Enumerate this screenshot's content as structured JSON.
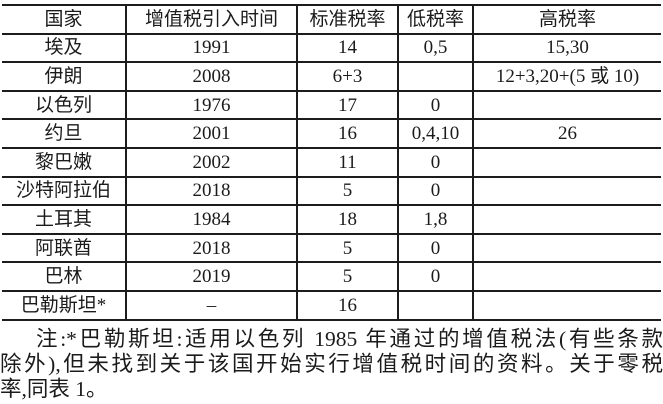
{
  "table": {
    "headers": [
      "国家",
      "增值税引入时间",
      "标准税率",
      "低税率",
      "高税率"
    ],
    "rows": [
      {
        "country": "埃及",
        "intro_year": "1991",
        "standard_rate": "14",
        "low_rate": "0,5",
        "high_rate": "15,30"
      },
      {
        "country": "伊朗",
        "intro_year": "2008",
        "standard_rate": "6+3",
        "low_rate": "",
        "high_rate": "12+3,20+(5 或 10)"
      },
      {
        "country": "以色列",
        "intro_year": "1976",
        "standard_rate": "17",
        "low_rate": "0",
        "high_rate": ""
      },
      {
        "country": "约旦",
        "intro_year": "2001",
        "standard_rate": "16",
        "low_rate": "0,4,10",
        "high_rate": "26"
      },
      {
        "country": "黎巴嫩",
        "intro_year": "2002",
        "standard_rate": "11",
        "low_rate": "0",
        "high_rate": ""
      },
      {
        "country": "沙特阿拉伯",
        "intro_year": "2018",
        "standard_rate": "5",
        "low_rate": "0",
        "high_rate": ""
      },
      {
        "country": "土耳其",
        "intro_year": "1984",
        "standard_rate": "18",
        "low_rate": "1,8",
        "high_rate": ""
      },
      {
        "country": "阿联酋",
        "intro_year": "2018",
        "standard_rate": "5",
        "low_rate": "0",
        "high_rate": ""
      },
      {
        "country": "巴林",
        "intro_year": "2019",
        "standard_rate": "5",
        "low_rate": "0",
        "high_rate": ""
      },
      {
        "country": "巴勒斯坦*",
        "intro_year": "–",
        "standard_rate": "16",
        "low_rate": "",
        "high_rate": ""
      }
    ]
  },
  "note": {
    "lines": [
      "注:*巴勒斯坦:适用以色列 1985 年通过的增值税法(有些条款",
      "除外),但未找到关于该国开始实行增值税时间的资料。关于零税",
      "率,同表 1。"
    ],
    "full_text": "注:*巴勒斯坦:适用以色列 1985 年通过的增值税法(有些条款除外),但未找到关于该国开始实行增值税时间的资料。关于零税率,同表 1。"
  },
  "colors": {
    "text": "#1b1b1b",
    "border": "#1c1c1c",
    "background": "#ffffff"
  }
}
